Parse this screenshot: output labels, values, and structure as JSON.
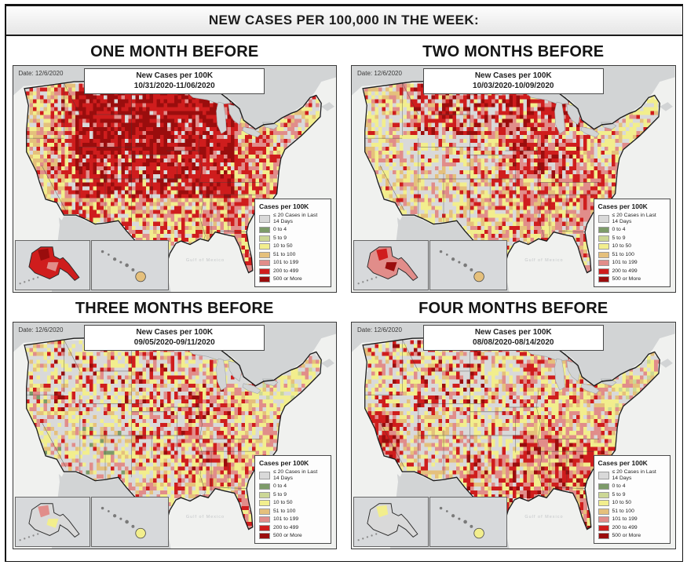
{
  "page": {
    "title": "NEW CASES PER 100,000 IN THE WEEK:"
  },
  "chart_data": {
    "type": "heatmap",
    "subtype": "choropleth-small-multiples",
    "title": "NEW CASES PER 100,000 IN THE WEEK:",
    "unit": "new COVID-19 cases per 100,000 per week, by U.S. county",
    "as_of_date": "12/6/2020",
    "legend_bins": [
      "≤ 20 Cases in Last 14 Days",
      "0 to 4",
      "5 to 9",
      "10 to 50",
      "51 to 100",
      "101 to 199",
      "200 to 499",
      "500 or More"
    ],
    "panels": [
      {
        "label": "ONE MONTH BEFORE",
        "week": "10/31/2020-11/06/2020",
        "summary": "Upper Midwest and Northern Plains overwhelmingly 500+ (dark red) and 200-499 (red); red dominates the interior; Pacific coast and Northeast mostly 10-199."
      },
      {
        "label": "TWO MONTHS BEFORE",
        "week": "10/03/2020-10/09/2020",
        "summary": "Dense 200-499/500+ cluster over MT/ND/SD/MN/WI and upper Midwest; Great Basin and Northeast largely under 50; South mixed 51-199."
      },
      {
        "label": "THREE MONTHS BEFORE",
        "week": "09/05/2020-09/11/2020",
        "summary": "West and Northeast mostly ≤20 or 10-50; 101-199 corridor through Iowa/Missouri and the mid-South; scattered 200+ counties."
      },
      {
        "label": "FOUR MONTHS BEFORE",
        "week": "08/08/2020-08/14/2020",
        "summary": "200+ hotspots in California's Central Valley, south Texas and across the Southeast; Plains and interior West mostly under 50."
      }
    ]
  },
  "legend": {
    "title": "Cases per 100K",
    "special": {
      "key": "gray",
      "label": "≤ 20 Cases in Last 14 Days"
    },
    "items": [
      {
        "key": "green",
        "label": "0 to 4"
      },
      {
        "key": "lightgreen",
        "label": "5 to 9"
      },
      {
        "key": "yellow",
        "label": "10 to 50"
      },
      {
        "key": "tan",
        "label": "51 to 100"
      },
      {
        "key": "salmon",
        "label": "101 to 199"
      },
      {
        "key": "red",
        "label": "200 to 499"
      },
      {
        "key": "darkred",
        "label": "500 or More"
      }
    ],
    "palette": {
      "gray": "#d9d9d9",
      "green": "#7d9b69",
      "lightgreen": "#ccd795",
      "yellow": "#f2ee8d",
      "tan": "#e5c07c",
      "salmon": "#e18d8a",
      "red": "#cf1d1d",
      "darkred": "#9a0d0d"
    }
  },
  "map_labels": {
    "mexico": "MEXICO",
    "gulf": "Gulf of Mexico"
  },
  "map_colors": {
    "ocean": "#f0f1ef",
    "land": "#d2d4d5"
  },
  "panels": [
    {
      "heading": "ONE MONTH BEFORE",
      "date_label": "Date: 12/6/2020",
      "box_title": "New Cases per 100K",
      "box_range": "10/31/2020-11/06/2020",
      "seed": 7,
      "alaska": {
        "base": "red",
        "patches": [
          "darkred",
          "salmon"
        ]
      },
      "hawaii_big": "tan",
      "default_w": {
        "red": 40,
        "salmon": 28,
        "yellow": 18,
        "gray": 8,
        "darkred": 6
      },
      "regions": [
        {
          "x": [
            0,
            38
          ],
          "y": [
            0,
            140
          ],
          "w": {
            "yellow": 30,
            "tan": 25,
            "salmon": 20,
            "gray": 15,
            "red": 10
          }
        },
        {
          "x": [
            38,
            60
          ],
          "y": [
            0,
            100
          ],
          "w": {
            "red": 35,
            "salmon": 20,
            "tan": 15,
            "yellow": 15,
            "gray": 10,
            "darkred": 5
          }
        },
        {
          "x": [
            60,
            218
          ],
          "y": [
            0,
            78
          ],
          "w": {
            "darkred": 50,
            "red": 36,
            "salmon": 7,
            "gray": 7
          }
        },
        {
          "x": [
            60,
            218
          ],
          "y": [
            78,
            118
          ],
          "w": {
            "red": 44,
            "darkred": 24,
            "salmon": 15,
            "gray": 9,
            "yellow": 8
          }
        },
        {
          "x": [
            38,
            112
          ],
          "y": [
            95,
            152
          ],
          "w": {
            "red": 30,
            "salmon": 20,
            "gray": 20,
            "tan": 15,
            "yellow": 15
          }
        },
        {
          "x": [
            100,
            170
          ],
          "y": [
            118,
            190
          ],
          "w": {
            "red": 26,
            "yellow": 24,
            "salmon": 20,
            "gray": 16,
            "tan": 14
          }
        },
        {
          "x": [
            255,
            322
          ],
          "y": [
            0,
            78
          ],
          "w": {
            "yellow": 34,
            "salmon": 24,
            "gray": 20,
            "tan": 11,
            "red": 11
          }
        },
        {
          "x": [
            218,
            275
          ],
          "y": [
            40,
            112
          ],
          "w": {
            "red": 34,
            "salmon": 30,
            "yellow": 20,
            "tan": 10,
            "gray": 6
          }
        },
        {
          "x": [
            165,
            265
          ],
          "y": [
            112,
            192
          ],
          "w": {
            "salmon": 30,
            "red": 25,
            "yellow": 20,
            "tan": 15,
            "gray": 10
          }
        }
      ]
    },
    {
      "heading": "TWO MONTHS BEFORE",
      "date_label": "Date: 12/6/2020",
      "box_title": "New Cases per 100K",
      "box_range": "10/03/2020-10/09/2020",
      "seed": 13,
      "alaska": {
        "base": "salmon",
        "patches": [
          "red",
          "darkred"
        ]
      },
      "hawaii_big": "tan",
      "default_w": {
        "salmon": 30,
        "yellow": 24,
        "red": 20,
        "gray": 16,
        "tan": 10
      },
      "regions": [
        {
          "x": [
            0,
            38
          ],
          "y": [
            0,
            140
          ],
          "w": {
            "yellow": 33,
            "gray": 28,
            "tan": 20,
            "salmon": 12,
            "red": 7
          }
        },
        {
          "x": [
            60,
            160
          ],
          "y": [
            0,
            60
          ],
          "w": {
            "red": 34,
            "darkred": 18,
            "gray": 22,
            "salmon": 14,
            "tan": 6,
            "yellow": 6
          }
        },
        {
          "x": [
            160,
            225
          ],
          "y": [
            0,
            100
          ],
          "w": {
            "red": 36,
            "darkred": 14,
            "salmon": 26,
            "yellow": 12,
            "gray": 12
          }
        },
        {
          "x": [
            38,
            118
          ],
          "y": [
            40,
            145
          ],
          "w": {
            "gray": 42,
            "yellow": 20,
            "tan": 18,
            "salmon": 14,
            "red": 6
          }
        },
        {
          "x": [
            118,
            160
          ],
          "y": [
            60,
            120
          ],
          "w": {
            "gray": 30,
            "salmon": 22,
            "red": 20,
            "yellow": 16,
            "tan": 12
          }
        },
        {
          "x": [
            100,
            170
          ],
          "y": [
            118,
            190
          ],
          "w": {
            "yellow": 25,
            "salmon": 24,
            "gray": 20,
            "red": 16,
            "tan": 15
          }
        },
        {
          "x": [
            240,
            322
          ],
          "y": [
            0,
            82
          ],
          "w": {
            "yellow": 38,
            "gray": 28,
            "salmon": 16,
            "tan": 10,
            "red": 8
          }
        },
        {
          "x": [
            160,
            240
          ],
          "y": [
            95,
            145
          ],
          "w": {
            "salmon": 33,
            "red": 26,
            "yellow": 19,
            "tan": 11,
            "gray": 11
          }
        },
        {
          "x": [
            170,
            265
          ],
          "y": [
            120,
            192
          ],
          "w": {
            "salmon": 28,
            "yellow": 24,
            "tan": 19,
            "red": 17,
            "gray": 12
          }
        }
      ]
    },
    {
      "heading": "THREE MONTHS BEFORE",
      "date_label": "Date: 12/6/2020",
      "box_title": "New Cases per 100K",
      "box_range": "09/05/2020-09/11/2020",
      "seed": 21,
      "alaska": {
        "base": "gray",
        "patches": [
          "salmon",
          "yellow"
        ]
      },
      "hawaii_big": "yellow",
      "default_w": {
        "yellow": 34,
        "gray": 29,
        "salmon": 20,
        "red": 11,
        "tan": 6
      },
      "regions": [
        {
          "x": [
            0,
            38
          ],
          "y": [
            0,
            140
          ],
          "w": {
            "gray": 38,
            "yellow": 28,
            "tan": 14,
            "salmon": 10,
            "red": 7,
            "green": 3
          }
        },
        {
          "x": [
            38,
            132
          ],
          "y": [
            0,
            78
          ],
          "w": {
            "gray": 44,
            "yellow": 20,
            "red": 14,
            "salmon": 10,
            "tan": 6,
            "darkred": 6
          }
        },
        {
          "x": [
            38,
            118
          ],
          "y": [
            60,
            145
          ],
          "w": {
            "gray": 48,
            "yellow": 24,
            "tan": 13,
            "salmon": 8,
            "red": 4,
            "green": 3
          }
        },
        {
          "x": [
            118,
            165
          ],
          "y": [
            0,
            118
          ],
          "w": {
            "gray": 38,
            "yellow": 20,
            "red": 19,
            "salmon": 13,
            "darkred": 5,
            "tan": 5
          }
        },
        {
          "x": [
            160,
            220
          ],
          "y": [
            55,
            132
          ],
          "w": {
            "salmon": 31,
            "red": 21,
            "yellow": 20,
            "gray": 17,
            "darkred": 5,
            "tan": 6
          }
        },
        {
          "x": [
            100,
            170
          ],
          "y": [
            118,
            190
          ],
          "w": {
            "gray": 30,
            "yellow": 29,
            "salmon": 18,
            "tan": 12,
            "red": 11
          }
        },
        {
          "x": [
            240,
            322
          ],
          "y": [
            0,
            82
          ],
          "w": {
            "yellow": 44,
            "gray": 28,
            "salmon": 11,
            "tan": 11,
            "lightgreen": 6
          }
        },
        {
          "x": [
            215,
            275
          ],
          "y": [
            55,
            150
          ],
          "w": {
            "yellow": 34,
            "salmon": 25,
            "gray": 16,
            "red": 15,
            "tan": 10
          }
        },
        {
          "x": [
            165,
            240
          ],
          "y": [
            110,
            192
          ],
          "w": {
            "salmon": 29,
            "yellow": 25,
            "red": 18,
            "tan": 15,
            "gray": 13
          }
        }
      ]
    },
    {
      "heading": "FOUR MONTHS BEFORE",
      "date_label": "Date: 12/6/2020",
      "box_title": "New Cases per 100K",
      "box_range": "08/08/2020-08/14/2020",
      "seed": 29,
      "alaska": {
        "base": "gray",
        "patches": [
          "yellow",
          "gray"
        ]
      },
      "hawaii_big": "yellow",
      "default_w": {
        "salmon": 28,
        "yellow": 28,
        "gray": 20,
        "red": 17,
        "tan": 7
      },
      "regions": [
        {
          "x": [
            0,
            46
          ],
          "y": [
            78,
            142
          ],
          "w": {
            "red": 44,
            "darkred": 20,
            "salmon": 18,
            "tan": 12,
            "gray": 6
          }
        },
        {
          "x": [
            0,
            38
          ],
          "y": [
            0,
            78
          ],
          "w": {
            "yellow": 30,
            "gray": 28,
            "salmon": 16,
            "red": 16,
            "tan": 10
          }
        },
        {
          "x": [
            38,
            132
          ],
          "y": [
            0,
            78
          ],
          "w": {
            "gray": 38,
            "yellow": 20,
            "red": 16,
            "salmon": 12,
            "darkred": 8,
            "tan": 6
          }
        },
        {
          "x": [
            46,
            112
          ],
          "y": [
            60,
            148
          ],
          "w": {
            "gray": 34,
            "tan": 21,
            "yellow": 19,
            "salmon": 15,
            "red": 11
          }
        },
        {
          "x": [
            112,
            165
          ],
          "y": [
            0,
            118
          ],
          "w": {
            "gray": 44,
            "yellow": 24,
            "salmon": 12,
            "red": 11,
            "tan": 9
          }
        },
        {
          "x": [
            100,
            170
          ],
          "y": [
            118,
            190
          ],
          "w": {
            "red": 30,
            "salmon": 22,
            "gray": 17,
            "yellow": 15,
            "tan": 10,
            "darkred": 6
          }
        },
        {
          "x": [
            245,
            322
          ],
          "y": [
            0,
            78
          ],
          "w": {
            "yellow": 38,
            "gray": 28,
            "salmon": 13,
            "tan": 13,
            "lightgreen": 8
          }
        },
        {
          "x": [
            205,
            275
          ],
          "y": [
            55,
            108
          ],
          "w": {
            "salmon": 29,
            "yellow": 29,
            "tan": 15,
            "red": 16,
            "gray": 11
          }
        },
        {
          "x": [
            165,
            268
          ],
          "y": [
            100,
            192
          ],
          "w": {
            "red": 31,
            "salmon": 30,
            "darkred": 12,
            "tan": 12,
            "yellow": 15
          }
        }
      ]
    }
  ]
}
